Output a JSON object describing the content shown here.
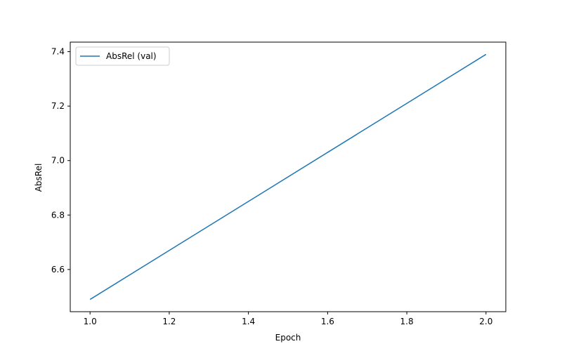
{
  "chart_data": {
    "type": "line",
    "title": "",
    "xlabel": "Epoch",
    "ylabel": "AbsRel",
    "xlim": [
      0.95,
      2.05
    ],
    "ylim": [
      6.445,
      7.435
    ],
    "x_ticks": [
      1.0,
      1.2,
      1.4,
      1.6,
      1.8,
      2.0
    ],
    "x_tick_labels": [
      "1.0",
      "1.2",
      "1.4",
      "1.6",
      "1.8",
      "2.0"
    ],
    "y_ticks": [
      6.6,
      6.8,
      7.0,
      7.2,
      7.4
    ],
    "y_tick_labels": [
      "6.6",
      "6.8",
      "7.0",
      "7.2",
      "7.4"
    ],
    "grid": false,
    "legend_position": "top-left",
    "series": [
      {
        "name": "AbsRel (val)",
        "color": "#1f77b4",
        "x": [
          1.0,
          2.0
        ],
        "y": [
          6.49,
          7.39
        ]
      }
    ]
  }
}
